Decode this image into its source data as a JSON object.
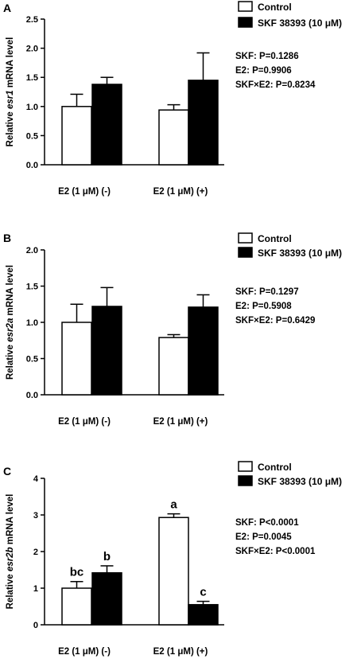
{
  "chart_data": [
    {
      "type": "bar",
      "panel_label": "A",
      "ylabel_prefix": "Relative ",
      "ylabel_gene": "esr1",
      "ylabel_suffix": " mRNA level",
      "ylim": [
        0,
        2.5
      ],
      "yticks": [
        "0.0",
        "0.5",
        "1.0",
        "1.5",
        "2.0",
        "2.5"
      ],
      "ytick_values": [
        0,
        0.5,
        1.0,
        1.5,
        2.0,
        2.5
      ],
      "categories": [
        "E2 (1 μM) (-)",
        "E2 (1 μM) (+)"
      ],
      "series": [
        {
          "name": "Control",
          "values": [
            1.0,
            0.94
          ],
          "errors": [
            0.21,
            0.09
          ],
          "color": "#ffffff"
        },
        {
          "name": "SKF 38393 (10 μM)",
          "values": [
            1.38,
            1.45
          ],
          "errors": [
            0.12,
            0.47
          ],
          "color": "#000000"
        }
      ],
      "letters": [
        [
          "",
          ""
        ],
        [
          "",
          ""
        ]
      ],
      "stats": [
        "SKF: P=0.1286",
        "E2: P=0.9906",
        "SKF×E2: P=0.8234"
      ],
      "legend_position": "top-right"
    },
    {
      "type": "bar",
      "panel_label": "B",
      "ylabel_prefix": "Relative ",
      "ylabel_gene": "esr2a",
      "ylabel_suffix": " mRNA level",
      "ylim": [
        0,
        2.0
      ],
      "yticks": [
        "0.0",
        "0.5",
        "1.0",
        "1.5",
        "2.0"
      ],
      "ytick_values": [
        0,
        0.5,
        1.0,
        1.5,
        2.0
      ],
      "categories": [
        "E2 (1 μM) (-)",
        "E2 (1 μM) (+)"
      ],
      "series": [
        {
          "name": "Control",
          "values": [
            1.0,
            0.79
          ],
          "errors": [
            0.25,
            0.04
          ],
          "color": "#ffffff"
        },
        {
          "name": "SKF 38393 (10 μM)",
          "values": [
            1.22,
            1.21
          ],
          "errors": [
            0.26,
            0.17
          ],
          "color": "#000000"
        }
      ],
      "letters": [
        [
          "",
          ""
        ],
        [
          "",
          ""
        ]
      ],
      "stats": [
        "SKF: P=0.1297",
        "E2: P=0.5908",
        "SKF×E2: P=0.6429"
      ],
      "legend_position": "top-right"
    },
    {
      "type": "bar",
      "panel_label": "C",
      "ylabel_prefix": "Relative ",
      "ylabel_gene": "esr2b",
      "ylabel_suffix": " mRNA level",
      "ylim": [
        0,
        4
      ],
      "yticks": [
        "0",
        "1",
        "2",
        "3",
        "4"
      ],
      "ytick_values": [
        0,
        1,
        2,
        3,
        4
      ],
      "categories": [
        "E2 (1 μM) (-)",
        "E2 (1 μM) (+)"
      ],
      "series": [
        {
          "name": "Control",
          "values": [
            1.0,
            2.93
          ],
          "errors": [
            0.18,
            0.1
          ],
          "color": "#ffffff"
        },
        {
          "name": "SKF 38393 (10 μM)",
          "values": [
            1.42,
            0.55
          ],
          "errors": [
            0.19,
            0.09
          ],
          "color": "#000000"
        }
      ],
      "letters": [
        [
          "bc",
          "b"
        ],
        [
          "a",
          "c"
        ]
      ],
      "stats": [
        "SKF: P<0.0001",
        "E2: P=0.0045",
        "SKF×E2: P<0.0001"
      ],
      "legend_position": "top-right"
    }
  ]
}
